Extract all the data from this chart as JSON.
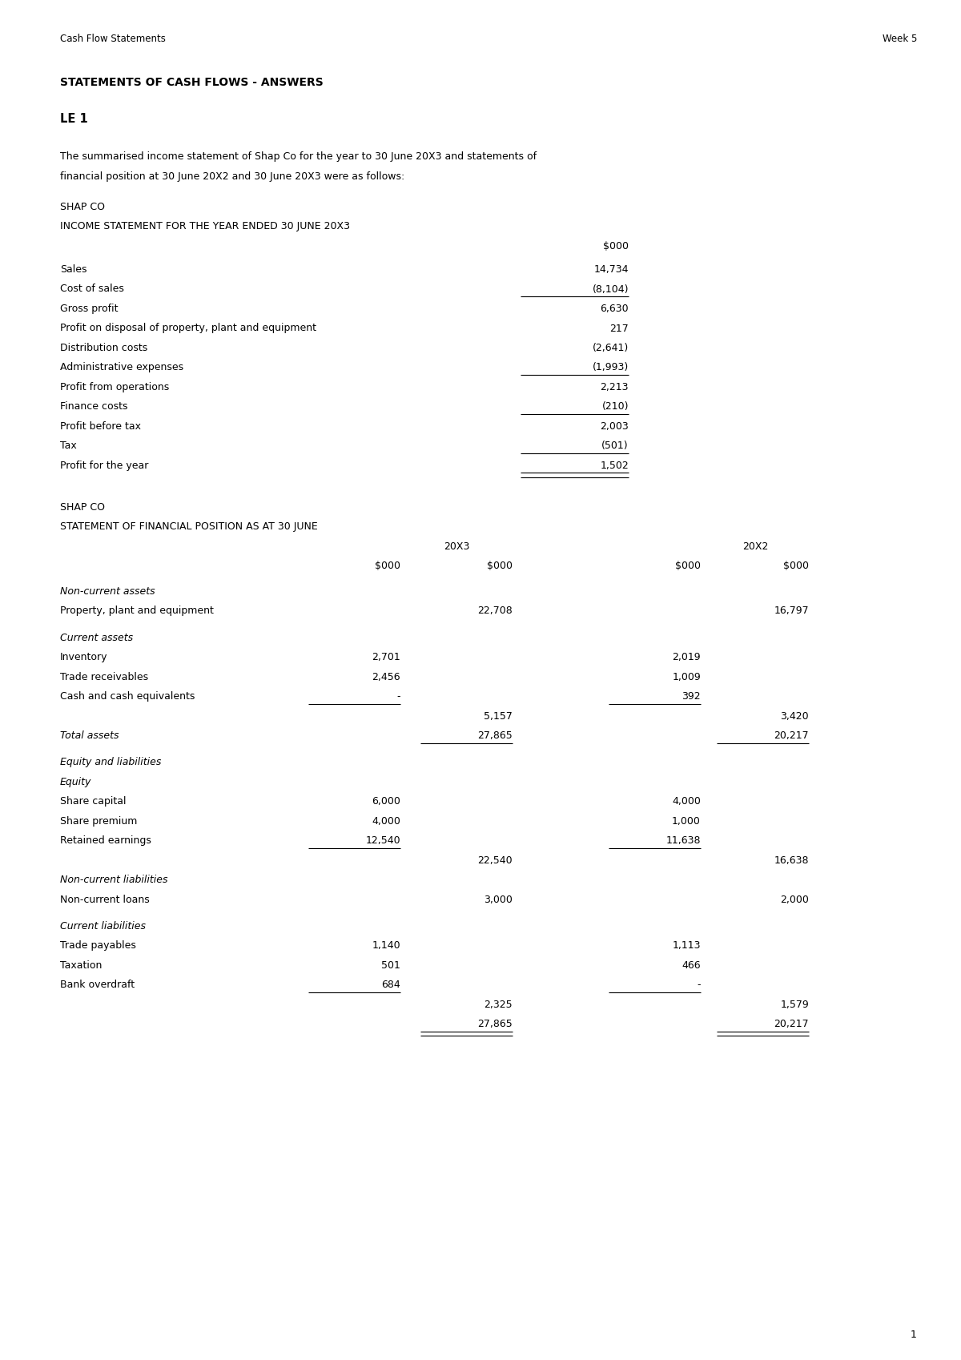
{
  "header_left": "Cash Flow Statements",
  "header_right": "Week 5",
  "title": "STATEMENTS OF CASH FLOWS - ANSWERS",
  "le1": "LE 1",
  "intro_line1": "The summarised income statement of Shap Co for the year to 30 June 20X3 and statements of",
  "intro_line2": "financial position at 30 June 20X2 and 30 June 20X3 were as follows:",
  "is_heading1": "SHAP CO",
  "is_heading2": "INCOME STATEMENT FOR THE YEAR ENDED 30 JUNE 20X3",
  "is_col_header": "$000",
  "income_statement": [
    {
      "label": "Sales",
      "value": "14,734",
      "ul_below": false,
      "double_below": false
    },
    {
      "label": "Cost of sales",
      "value": "(8,104)",
      "ul_below": true,
      "double_below": false
    },
    {
      "label": "Gross profit",
      "value": "6,630",
      "ul_below": false,
      "double_below": false
    },
    {
      "label": "Profit on disposal of property, plant and equipment",
      "value": "217",
      "ul_below": false,
      "double_below": false
    },
    {
      "label": "Distribution costs",
      "value": "(2,641)",
      "ul_below": false,
      "double_below": false
    },
    {
      "label": "Administrative expenses",
      "value": "(1,993)",
      "ul_below": true,
      "double_below": false
    },
    {
      "label": "Profit from operations",
      "value": "2,213",
      "ul_below": false,
      "double_below": false
    },
    {
      "label": "Finance costs",
      "value": "(210)",
      "ul_below": true,
      "double_below": false
    },
    {
      "label": "Profit before tax",
      "value": "2,003",
      "ul_below": false,
      "double_below": false
    },
    {
      "label": "Tax",
      "value": "(501)",
      "ul_below": true,
      "double_below": false
    },
    {
      "label": "Profit for the year",
      "value": "1,502",
      "ul_below": true,
      "double_below": true
    }
  ],
  "sfp_heading1": "SHAP CO",
  "sfp_heading2": "STATEMENT OF FINANCIAL POSITION AS AT 30 JUNE",
  "sfp_col1": "20X3",
  "sfp_col2": "20X2",
  "sfp_sub_col": [
    "$000",
    "$000",
    "$000",
    "$000"
  ],
  "sfp_rows": [
    {
      "label": "Non-current assets",
      "c1": "",
      "c2": "",
      "c3": "",
      "c4": "",
      "italic": true,
      "ul_c1": false,
      "ul_c2": false,
      "ul_c3": false,
      "ul_c4": false,
      "dbl_c2": false,
      "dbl_c4": false,
      "space_after": false
    },
    {
      "label": "Property, plant and equipment",
      "c1": "",
      "c2": "22,708",
      "c3": "",
      "c4": "16,797",
      "italic": false,
      "ul_c1": false,
      "ul_c2": false,
      "ul_c3": false,
      "ul_c4": false,
      "dbl_c2": false,
      "dbl_c4": false,
      "space_after": true
    },
    {
      "label": "Current assets",
      "c1": "",
      "c2": "",
      "c3": "",
      "c4": "",
      "italic": true,
      "ul_c1": false,
      "ul_c2": false,
      "ul_c3": false,
      "ul_c4": false,
      "dbl_c2": false,
      "dbl_c4": false,
      "space_after": false
    },
    {
      "label": "Inventory",
      "c1": "2,701",
      "c2": "",
      "c3": "2,019",
      "c4": "",
      "italic": false,
      "ul_c1": false,
      "ul_c2": false,
      "ul_c3": false,
      "ul_c4": false,
      "dbl_c2": false,
      "dbl_c4": false,
      "space_after": false
    },
    {
      "label": "Trade receivables",
      "c1": "2,456",
      "c2": "",
      "c3": "1,009",
      "c4": "",
      "italic": false,
      "ul_c1": false,
      "ul_c2": false,
      "ul_c3": false,
      "ul_c4": false,
      "dbl_c2": false,
      "dbl_c4": false,
      "space_after": false
    },
    {
      "label": "Cash and cash equivalents",
      "c1": "-",
      "c2": "",
      "c3": "392",
      "c4": "",
      "italic": false,
      "ul_c1": true,
      "ul_c2": false,
      "ul_c3": true,
      "ul_c4": false,
      "dbl_c2": false,
      "dbl_c4": false,
      "space_after": false
    },
    {
      "label": "",
      "c1": "",
      "c2": "5,157",
      "c3": "",
      "c4": "3,420",
      "italic": false,
      "ul_c1": false,
      "ul_c2": false,
      "ul_c3": false,
      "ul_c4": false,
      "dbl_c2": false,
      "dbl_c4": false,
      "space_after": false
    },
    {
      "label": "Total assets",
      "c1": "",
      "c2": "27,865",
      "c3": "",
      "c4": "20,217",
      "italic": true,
      "ul_c1": false,
      "ul_c2": true,
      "ul_c3": false,
      "ul_c4": true,
      "dbl_c2": false,
      "dbl_c4": false,
      "space_after": true
    },
    {
      "label": "Equity and liabilities",
      "c1": "",
      "c2": "",
      "c3": "",
      "c4": "",
      "italic": true,
      "ul_c1": false,
      "ul_c2": false,
      "ul_c3": false,
      "ul_c4": false,
      "dbl_c2": false,
      "dbl_c4": false,
      "space_after": false
    },
    {
      "label": "Equity",
      "c1": "",
      "c2": "",
      "c3": "",
      "c4": "",
      "italic": true,
      "ul_c1": false,
      "ul_c2": false,
      "ul_c3": false,
      "ul_c4": false,
      "dbl_c2": false,
      "dbl_c4": false,
      "space_after": false
    },
    {
      "label": "Share capital",
      "c1": "6,000",
      "c2": "",
      "c3": "4,000",
      "c4": "",
      "italic": false,
      "ul_c1": false,
      "ul_c2": false,
      "ul_c3": false,
      "ul_c4": false,
      "dbl_c2": false,
      "dbl_c4": false,
      "space_after": false
    },
    {
      "label": "Share premium",
      "c1": "4,000",
      "c2": "",
      "c3": "1,000",
      "c4": "",
      "italic": false,
      "ul_c1": false,
      "ul_c2": false,
      "ul_c3": false,
      "ul_c4": false,
      "dbl_c2": false,
      "dbl_c4": false,
      "space_after": false
    },
    {
      "label": "Retained earnings",
      "c1": "12,540",
      "c2": "",
      "c3": "11,638",
      "c4": "",
      "italic": false,
      "ul_c1": true,
      "ul_c2": false,
      "ul_c3": true,
      "ul_c4": false,
      "dbl_c2": false,
      "dbl_c4": false,
      "space_after": false
    },
    {
      "label": "",
      "c1": "",
      "c2": "22,540",
      "c3": "",
      "c4": "16,638",
      "italic": false,
      "ul_c1": false,
      "ul_c2": false,
      "ul_c3": false,
      "ul_c4": false,
      "dbl_c2": false,
      "dbl_c4": false,
      "space_after": false
    },
    {
      "label": "Non-current liabilities",
      "c1": "",
      "c2": "",
      "c3": "",
      "c4": "",
      "italic": true,
      "ul_c1": false,
      "ul_c2": false,
      "ul_c3": false,
      "ul_c4": false,
      "dbl_c2": false,
      "dbl_c4": false,
      "space_after": false
    },
    {
      "label": "Non-current loans",
      "c1": "",
      "c2": "3,000",
      "c3": "",
      "c4": "2,000",
      "italic": false,
      "ul_c1": false,
      "ul_c2": false,
      "ul_c3": false,
      "ul_c4": false,
      "dbl_c2": false,
      "dbl_c4": false,
      "space_after": true
    },
    {
      "label": "Current liabilities",
      "c1": "",
      "c2": "",
      "c3": "",
      "c4": "",
      "italic": true,
      "ul_c1": false,
      "ul_c2": false,
      "ul_c3": false,
      "ul_c4": false,
      "dbl_c2": false,
      "dbl_c4": false,
      "space_after": false
    },
    {
      "label": "Trade payables",
      "c1": "1,140",
      "c2": "",
      "c3": "1,113",
      "c4": "",
      "italic": false,
      "ul_c1": false,
      "ul_c2": false,
      "ul_c3": false,
      "ul_c4": false,
      "dbl_c2": false,
      "dbl_c4": false,
      "space_after": false
    },
    {
      "label": "Taxation",
      "c1": "501",
      "c2": "",
      "c3": "466",
      "c4": "",
      "italic": false,
      "ul_c1": false,
      "ul_c2": false,
      "ul_c3": false,
      "ul_c4": false,
      "dbl_c2": false,
      "dbl_c4": false,
      "space_after": false
    },
    {
      "label": "Bank overdraft",
      "c1": "684",
      "c2": "",
      "c3": "-",
      "c4": "",
      "italic": false,
      "ul_c1": true,
      "ul_c2": false,
      "ul_c3": true,
      "ul_c4": false,
      "dbl_c2": false,
      "dbl_c4": false,
      "space_after": false
    },
    {
      "label": "",
      "c1": "",
      "c2": "2,325",
      "c3": "",
      "c4": "1,579",
      "italic": false,
      "ul_c1": false,
      "ul_c2": false,
      "ul_c3": false,
      "ul_c4": false,
      "dbl_c2": false,
      "dbl_c4": false,
      "space_after": false
    },
    {
      "label": "",
      "c1": "",
      "c2": "27,865",
      "c3": "",
      "c4": "20,217",
      "italic": false,
      "ul_c1": false,
      "ul_c2": true,
      "ul_c3": false,
      "ul_c4": true,
      "dbl_c2": true,
      "dbl_c4": true,
      "space_after": false
    }
  ],
  "page_number": "1",
  "bg_color": "#ffffff",
  "text_color": "#000000"
}
